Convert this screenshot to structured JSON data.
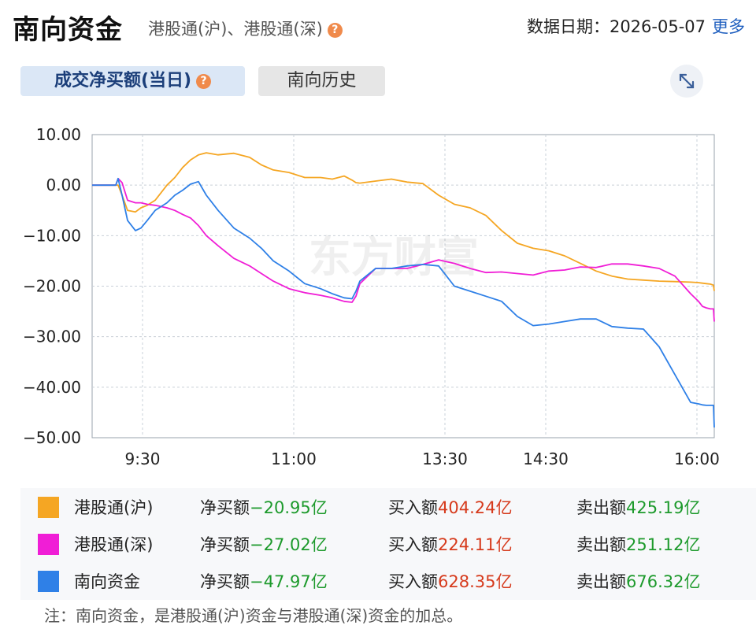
{
  "header": {
    "title": "南向资金",
    "subtitle": "港股通(沪)、港股通(深)",
    "help_icon": "?",
    "date_label": "数据日期：",
    "date_value": "2026-05-07",
    "more_link": "更多"
  },
  "tabs": [
    {
      "label": "成交净买额(当日)",
      "active": true
    },
    {
      "label": "南向历史",
      "active": false
    }
  ],
  "expand_icon": "expand-arrows-icon",
  "watermark": "东方财富",
  "chart_data": {
    "type": "line",
    "title": "",
    "xlabel": "",
    "ylabel": "",
    "ylim": [
      -50,
      10
    ],
    "y_ticks": [
      10,
      0,
      -10,
      -20,
      -30,
      -40,
      -50
    ],
    "y_tick_labels": [
      "10.00",
      "0.00",
      "−10.00",
      "−20.00",
      "−30.00",
      "−40.00",
      "−50.00"
    ],
    "x_tick_labels": [
      "9:30",
      "11:00",
      "13:30",
      "14:30",
      "16:00"
    ],
    "grid": true,
    "series": [
      {
        "name": "港股通(沪)",
        "color": "#f5a623",
        "x": [
          0,
          30,
          33,
          38,
          45,
          55,
          62,
          70,
          80,
          95,
          105,
          115,
          125,
          135,
          145,
          160,
          180,
          200,
          215,
          230,
          250,
          270,
          290,
          305,
          320,
          330,
          335,
          340,
          360,
          380,
          400,
          420,
          440,
          460,
          480,
          500,
          520,
          540,
          560,
          580,
          600,
          620,
          640,
          660,
          680,
          700,
          720,
          740,
          760,
          770,
          775,
          780,
          785,
          789,
          790
        ],
        "values": [
          0,
          0,
          0,
          -2,
          -5,
          -5.3,
          -4.5,
          -4,
          -3,
          0,
          1.5,
          3.5,
          5,
          6,
          6.4,
          6,
          6.3,
          5.5,
          4,
          3,
          2.5,
          1.5,
          1.5,
          1.2,
          1.8,
          1,
          0.5,
          0.4,
          0.8,
          1.2,
          0.6,
          0.3,
          -2,
          -3.8,
          -4.5,
          -6,
          -9,
          -11.5,
          -12.5,
          -13,
          -14,
          -15.5,
          -17,
          -18,
          -18.6,
          -18.8,
          -19,
          -19.1,
          -19.2,
          -19.3,
          -19.4,
          -19.5,
          -19.6,
          -19.8,
          -20.95
        ]
      },
      {
        "name": "港股通(深)",
        "color": "#f01ed6",
        "x": [
          0,
          30,
          33,
          38,
          45,
          55,
          62,
          70,
          80,
          95,
          105,
          115,
          125,
          135,
          145,
          160,
          180,
          200,
          215,
          230,
          250,
          270,
          290,
          305,
          320,
          330,
          335,
          340,
          360,
          380,
          400,
          420,
          440,
          460,
          480,
          500,
          520,
          540,
          560,
          580,
          600,
          620,
          640,
          660,
          680,
          700,
          720,
          740,
          760,
          770,
          775,
          780,
          785,
          789,
          790
        ],
        "values": [
          0,
          0,
          1.3,
          0.5,
          -3,
          -3.5,
          -3.5,
          -3.8,
          -4,
          -4.5,
          -5,
          -5.8,
          -6.5,
          -8,
          -10,
          -12,
          -14.5,
          -16,
          -17.5,
          -19,
          -20.5,
          -21.3,
          -21.8,
          -22.3,
          -23,
          -23.2,
          -22,
          -19.5,
          -16.5,
          -16.5,
          -16.5,
          -15.7,
          -14.8,
          -15.5,
          -16.5,
          -17.3,
          -17.2,
          -17.5,
          -17.8,
          -17,
          -16.8,
          -16.2,
          -16.3,
          -15.6,
          -15.6,
          -16,
          -16.5,
          -18,
          -21.5,
          -23,
          -24,
          -24.3,
          -24.5,
          -24.5,
          -27.02
        ]
      },
      {
        "name": "南向资金",
        "color": "#2f80e7",
        "x": [
          0,
          30,
          33,
          38,
          45,
          55,
          62,
          70,
          80,
          95,
          105,
          115,
          125,
          135,
          145,
          160,
          180,
          200,
          215,
          230,
          250,
          270,
          290,
          305,
          320,
          330,
          335,
          340,
          360,
          380,
          400,
          420,
          440,
          460,
          480,
          500,
          520,
          540,
          560,
          580,
          600,
          620,
          640,
          660,
          680,
          700,
          720,
          740,
          760,
          770,
          775,
          780,
          785,
          789,
          790
        ],
        "values": [
          0,
          0,
          1.3,
          -2,
          -7,
          -9,
          -8.5,
          -7,
          -5,
          -3.5,
          -2,
          -1,
          0.2,
          0.7,
          -2,
          -5,
          -8.5,
          -10.5,
          -12.5,
          -15,
          -17,
          -19.5,
          -20.5,
          -21.5,
          -22.3,
          -22.5,
          -21,
          -19,
          -16.5,
          -16.5,
          -16,
          -15.7,
          -16,
          -20,
          -21,
          -22,
          -23,
          -26,
          -27.8,
          -27.5,
          -27,
          -26.5,
          -26.5,
          -28,
          -28.3,
          -28.5,
          -32,
          -37.5,
          -43,
          -43.3,
          -43.5,
          -43.6,
          -43.6,
          -43.6,
          -47.97
        ]
      }
    ]
  },
  "legend": [
    {
      "name": "港股通(沪)",
      "color": "#f5a623",
      "net_label": "净买额",
      "net_value": "−20.95亿",
      "buy_label": "买入额",
      "buy_value": "404.24亿",
      "sell_label": "卖出额",
      "sell_value": "425.19亿"
    },
    {
      "name": "港股通(深)",
      "color": "#f01ed6",
      "net_label": "净买额",
      "net_value": "−27.02亿",
      "buy_label": "买入额",
      "buy_value": "224.11亿",
      "sell_label": "卖出额",
      "sell_value": "251.12亿"
    },
    {
      "name": "南向资金",
      "color": "#2f80e7",
      "net_label": "净买额",
      "net_value": "−47.97亿",
      "buy_label": "买入额",
      "buy_value": "628.35亿",
      "sell_label": "卖出额",
      "sell_value": "676.32亿"
    }
  ],
  "note": "注：南向资金，是港股通(沪)资金与港股通(深)资金的加总。"
}
